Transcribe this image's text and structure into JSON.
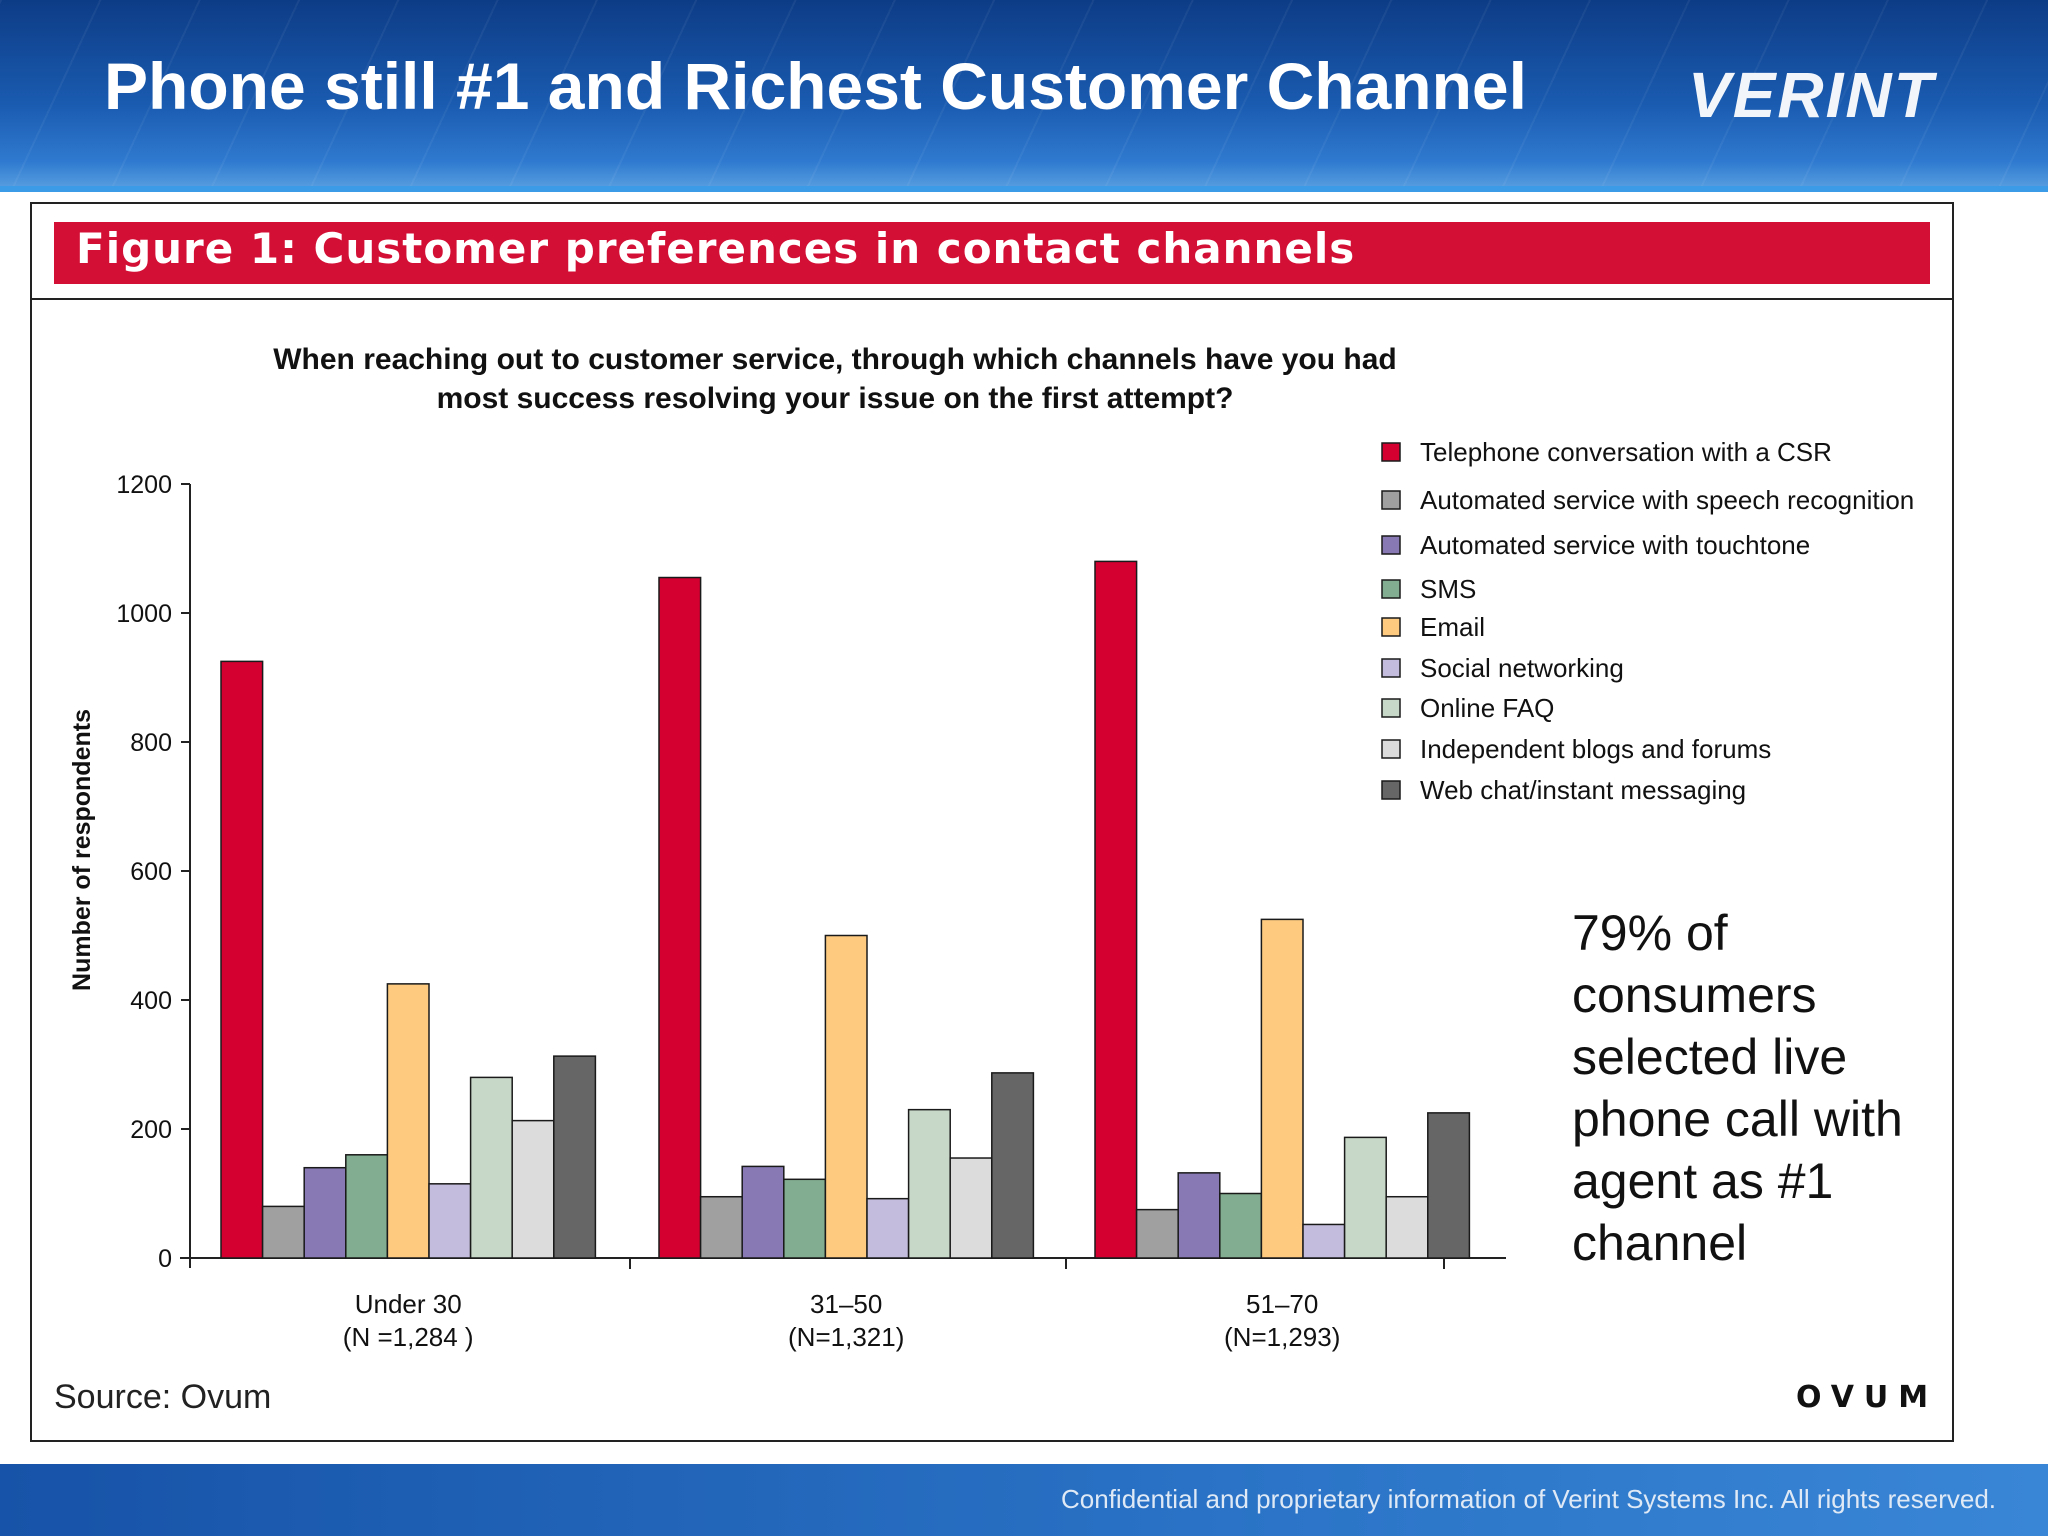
{
  "slide": {
    "title": "Phone still #1 and Richest Customer Channel",
    "brand": "VERINT",
    "footer": "Confidential and proprietary information of Verint Systems Inc. All rights reserved."
  },
  "figure": {
    "title": "Figure 1:  Customer preferences in contact channels",
    "source": "Source: Ovum",
    "publisher_logo": "OVUM",
    "callout": "79% of consumers selected live phone call with agent as #1 channel"
  },
  "chart_data": {
    "type": "bar",
    "title_lines": [
      "When reaching out to customer service, through which channels have you had",
      "most success resolving your issue on the first attempt?"
    ],
    "ylabel": "Number of respondents",
    "ylim": [
      0,
      1200
    ],
    "yticks": [
      0,
      200,
      400,
      600,
      800,
      1000,
      1200
    ],
    "grid": false,
    "legend_position": "top-right",
    "categories": [
      [
        "Under 30",
        "(N =1,284 )"
      ],
      [
        "31–50",
        "(N=1,321)"
      ],
      [
        "51–70",
        "(N=1,293)"
      ]
    ],
    "series": [
      {
        "name": "Telephone conversation with a CSR",
        "color": "#d4002f",
        "values": [
          925,
          1055,
          1080
        ]
      },
      {
        "name": "Automated service with speech recognition",
        "color": "#a0a0a0",
        "values": [
          80,
          95,
          75
        ]
      },
      {
        "name": "Automated service with touchtone",
        "color": "#8878b4",
        "values": [
          140,
          142,
          132
        ]
      },
      {
        "name": "SMS",
        "color": "#82ad90",
        "values": [
          160,
          122,
          100
        ]
      },
      {
        "name": "Email",
        "color": "#fdca80",
        "values": [
          425,
          500,
          525
        ]
      },
      {
        "name": "Social networking",
        "color": "#c4bcdc",
        "values": [
          115,
          92,
          52
        ]
      },
      {
        "name": "Online FAQ",
        "color": "#c8d8c8",
        "values": [
          280,
          230,
          187
        ]
      },
      {
        "name": "Independent blogs and forums",
        "color": "#dcdcdc",
        "values": [
          213,
          155,
          95
        ]
      },
      {
        "name": "Web chat/instant messaging",
        "color": "#666666",
        "values": [
          313,
          287,
          225
        ]
      }
    ]
  }
}
